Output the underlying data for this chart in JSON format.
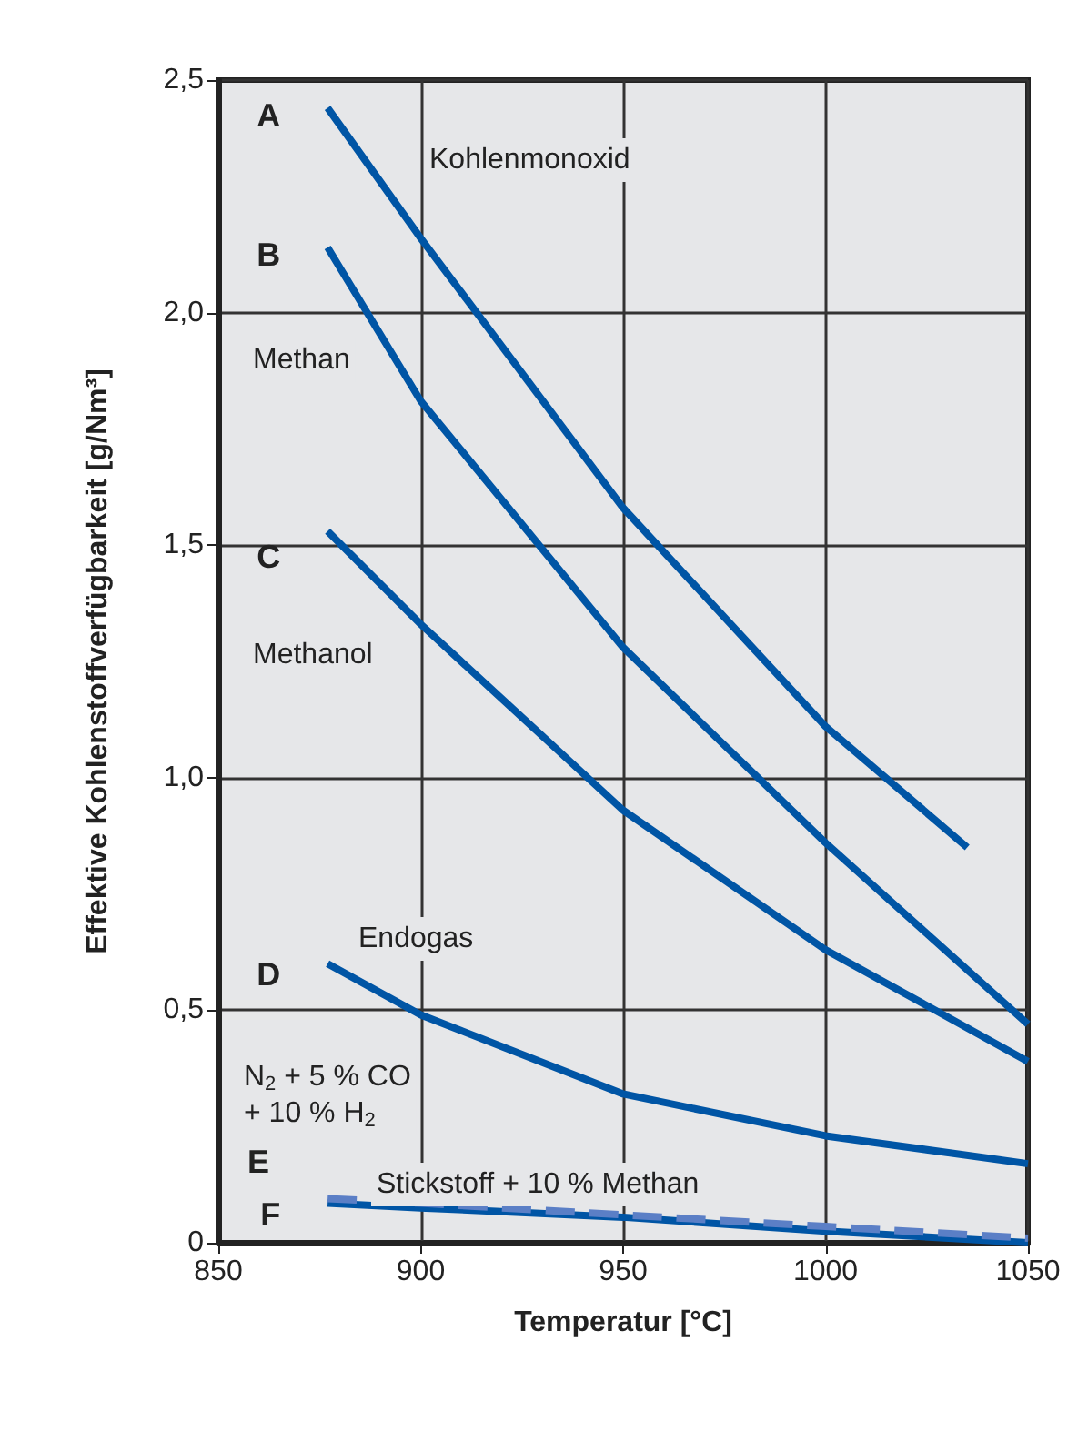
{
  "chart_data": {
    "type": "line",
    "xlabel": "Temperatur [°C]",
    "ylabel": "Effektive Kohlenstoffverfügbarkeit [g/Nm³]",
    "xlim": [
      850,
      1050
    ],
    "xticks": [
      850,
      900,
      950,
      1000,
      1050
    ],
    "ylim": [
      0,
      2.5
    ],
    "yticks": [
      0,
      {
        "value": 0.5,
        "label": "0,5"
      },
      {
        "value": 1,
        "label": "1,0"
      },
      {
        "value": 1.5,
        "label": "1,5"
      },
      {
        "value": 2,
        "label": "2,0"
      },
      {
        "value": 2.5,
        "label": "2,5"
      }
    ],
    "grid": true,
    "legend": false,
    "marker": "none",
    "series": [
      {
        "name": "A",
        "color": "#0055a5",
        "line_style": "solid",
        "x": [
          877,
          900,
          950,
          1000,
          1035
        ],
        "values": [
          2.44,
          2.16,
          1.58,
          1.11,
          0.85
        ]
      },
      {
        "name": "B",
        "color": "#0055a5",
        "line_style": "solid",
        "x": [
          877,
          900,
          950,
          1000,
          1050
        ],
        "values": [
          2.14,
          1.81,
          1.28,
          0.86,
          0.47
        ]
      },
      {
        "name": "C",
        "color": "#0055a5",
        "line_style": "solid",
        "x": [
          877,
          900,
          950,
          1000,
          1050
        ],
        "values": [
          1.53,
          1.33,
          0.93,
          0.63,
          0.39
        ]
      },
      {
        "name": "D",
        "color": "#0055a5",
        "line_style": "solid",
        "x": [
          877,
          900,
          950,
          1000,
          1050
        ],
        "values": [
          0.6,
          0.49,
          0.32,
          0.23,
          0.17
        ]
      },
      {
        "name": "E",
        "color": "#5b7fc6",
        "line_style": "dashed",
        "x": [
          877,
          900,
          950,
          1000,
          1050
        ],
        "values": [
          0.095,
          0.085,
          0.06,
          0.035,
          0.01
        ]
      },
      {
        "name": "F",
        "color": "#0055a5",
        "line_style": "solid",
        "x": [
          877,
          900,
          950,
          1000,
          1050
        ],
        "values": [
          0.085,
          0.075,
          0.055,
          0.025,
          0
        ]
      }
    ],
    "annotations": [
      "Kohlenmonoxid",
      "Methan",
      "Methanol",
      "Endogas",
      "N$_{2}$ + 5 % CO\n+ 10 % H$_{2}$",
      "Stickstoff + 10 % Methan"
    ]
  }
}
